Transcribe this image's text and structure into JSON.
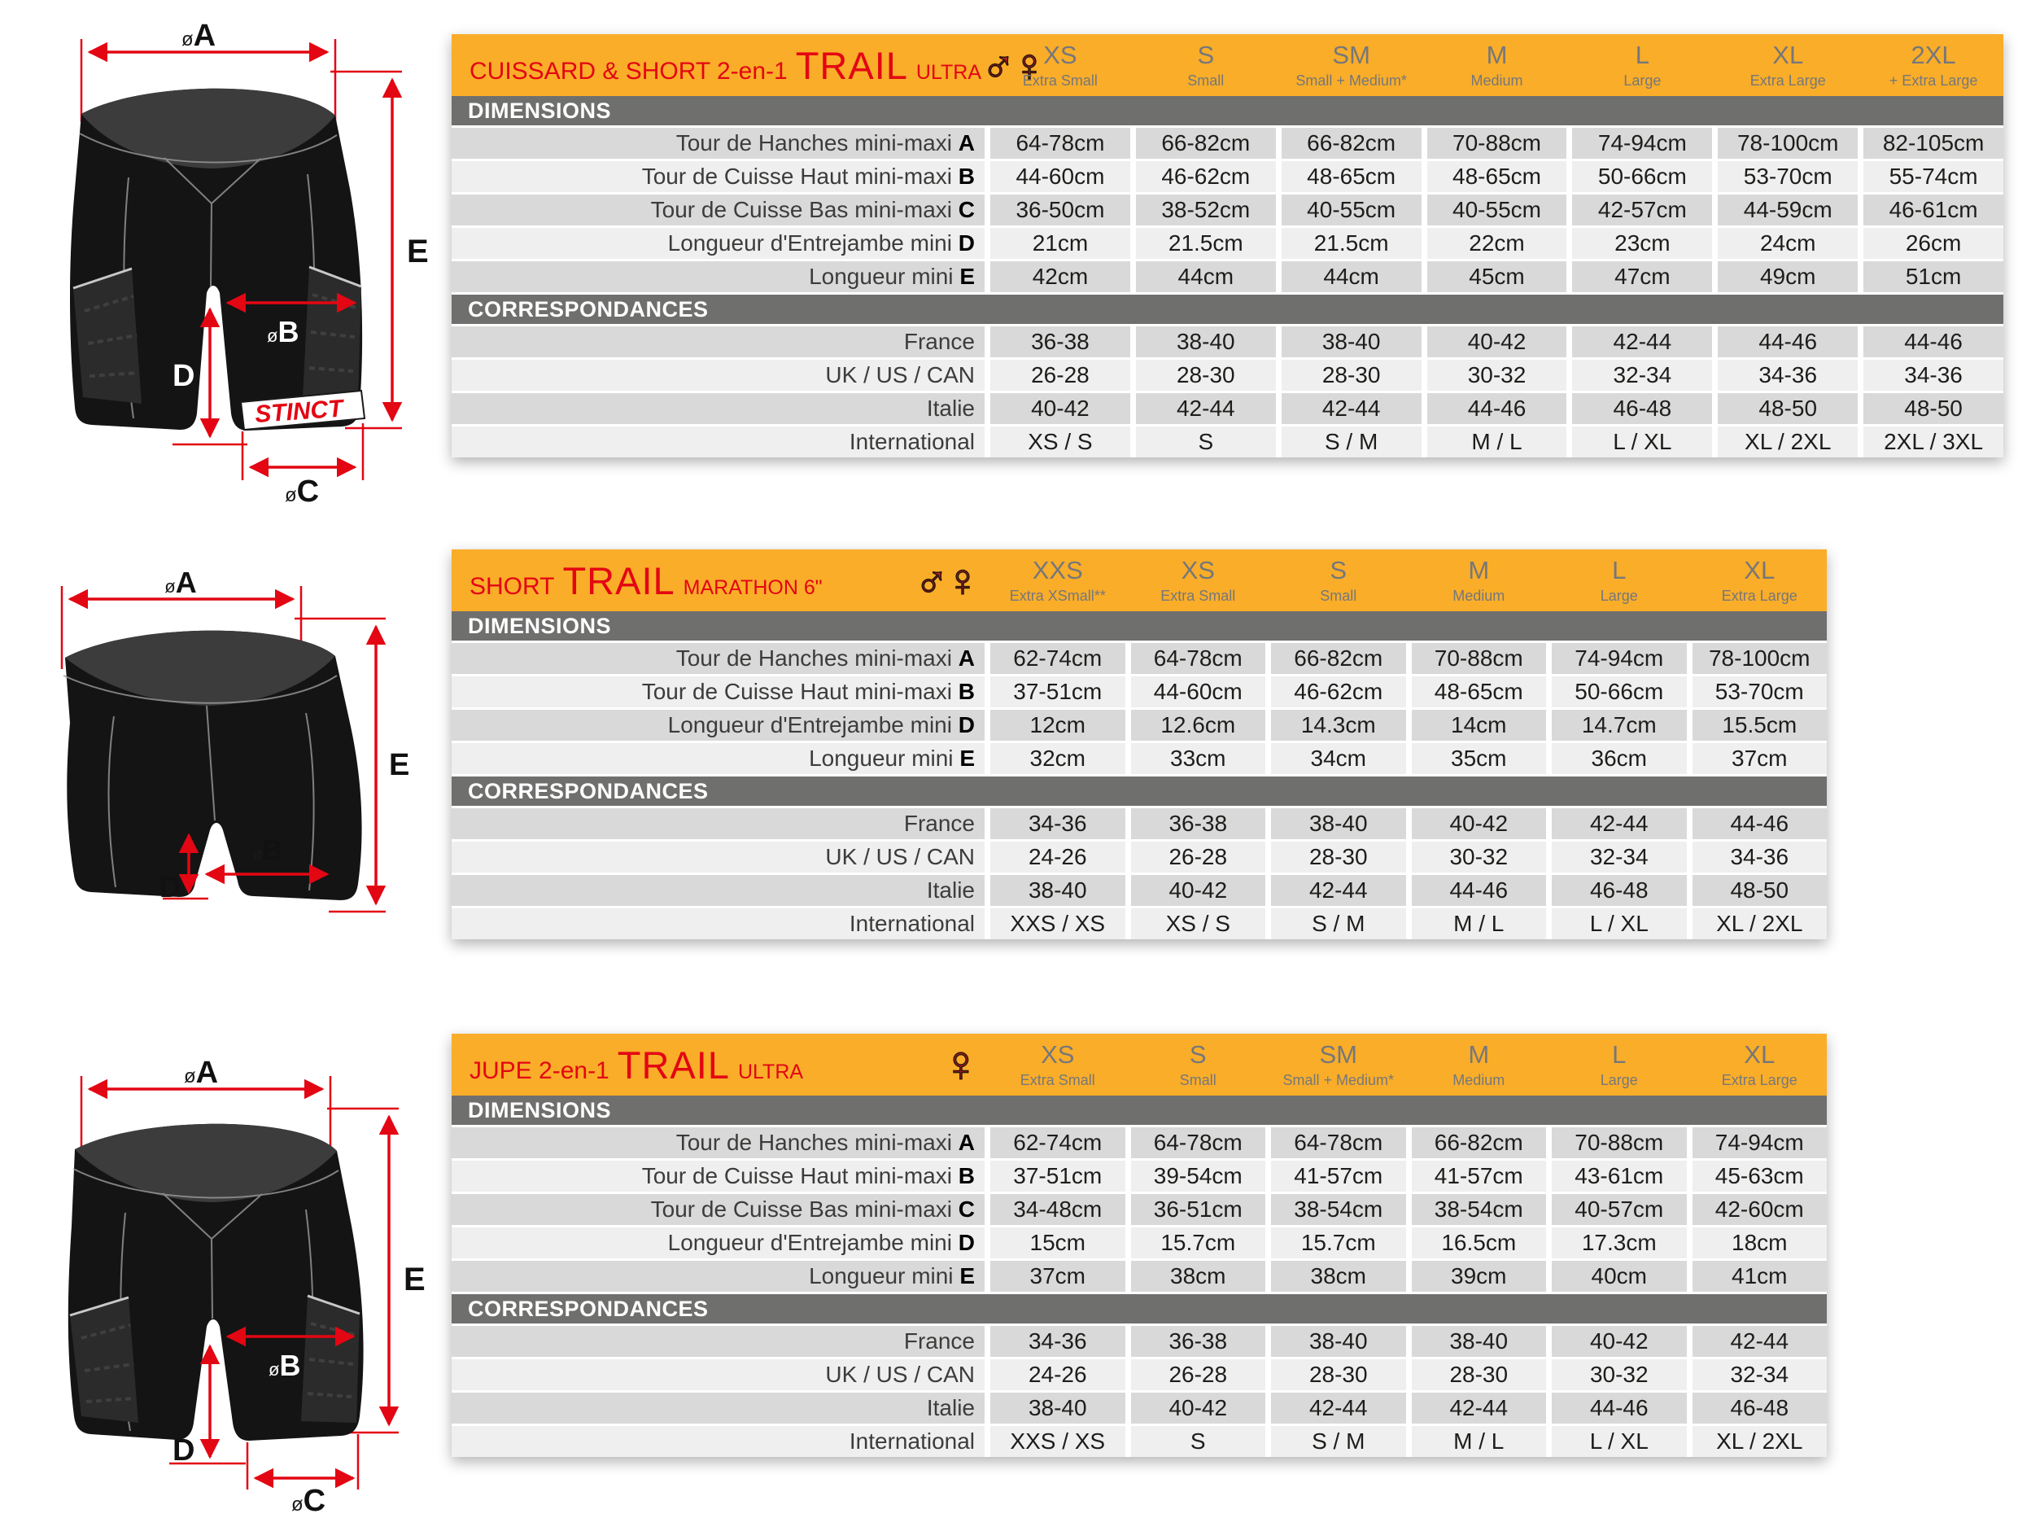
{
  "colors": {
    "header_orange": "#F9AD29",
    "title_red": "#E30613",
    "gender_red": "#C41E25",
    "band_gray": "#6F6F6E",
    "row_dark": "#D9D9D9",
    "row_light": "#EFEFEF",
    "size_label_gray": "#76777A",
    "arrow_red": "#E30613"
  },
  "diagrams": [
    {
      "diameter": "ø",
      "letters": {
        "a": "A",
        "b": "B",
        "c": "C",
        "d": "D",
        "e": "E"
      },
      "brand": "STINCT"
    },
    {
      "diameter": "ø",
      "letters": {
        "a": "A",
        "b": "B",
        "d": "D",
        "e": "E"
      }
    },
    {
      "diameter": "ø",
      "letters": {
        "a": "A",
        "b": "B",
        "c": "C",
        "d": "D",
        "e": "E"
      }
    }
  ],
  "tables": [
    {
      "title": {
        "prefix": "CUISSARD & SHORT 2-en-1",
        "main": "TRAIL",
        "suffix": "ULTRA"
      },
      "gender_icons": [
        {
          "name": "male",
          "glyph": "♂"
        },
        {
          "name": "female",
          "glyph": "♀"
        }
      ],
      "sizes": [
        {
          "code": "XS",
          "name": "Extra Small"
        },
        {
          "code": "S",
          "name": "Small"
        },
        {
          "code": "SM",
          "name": "Small + Medium*"
        },
        {
          "code": "M",
          "name": "Medium"
        },
        {
          "code": "L",
          "name": "Large"
        },
        {
          "code": "XL",
          "name": "Extra Large"
        },
        {
          "code": "2XL",
          "name": "+ Extra Large"
        }
      ],
      "section_dimensions": "DIMENSIONS",
      "section_correspondances": "CORRESPONDANCES",
      "dimension_rows": [
        {
          "label": "Tour de Hanches mini-maxi",
          "letter": "A",
          "values": [
            "64-78cm",
            "66-82cm",
            "66-82cm",
            "70-88cm",
            "74-94cm",
            "78-100cm",
            "82-105cm"
          ]
        },
        {
          "label": "Tour de Cuisse Haut mini-maxi",
          "letter": "B",
          "values": [
            "44-60cm",
            "46-62cm",
            "48-65cm",
            "48-65cm",
            "50-66cm",
            "53-70cm",
            "55-74cm"
          ]
        },
        {
          "label": "Tour de Cuisse Bas mini-maxi",
          "letter": "C",
          "values": [
            "36-50cm",
            "38-52cm",
            "40-55cm",
            "40-55cm",
            "42-57cm",
            "44-59cm",
            "46-61cm"
          ]
        },
        {
          "label": "Longueur d'Entrejambe mini",
          "letter": "D",
          "values": [
            "21cm",
            "21.5cm",
            "21.5cm",
            "22cm",
            "23cm",
            "24cm",
            "26cm"
          ]
        },
        {
          "label": "Longueur mini",
          "letter": "E",
          "values": [
            "42cm",
            "44cm",
            "44cm",
            "45cm",
            "47cm",
            "49cm",
            "51cm"
          ]
        }
      ],
      "correspondance_rows": [
        {
          "label": "France",
          "values": [
            "36-38",
            "38-40",
            "38-40",
            "40-42",
            "42-44",
            "44-46",
            "44-46"
          ]
        },
        {
          "label": "UK / US / CAN",
          "values": [
            "26-28",
            "28-30",
            "28-30",
            "30-32",
            "32-34",
            "34-36",
            "34-36"
          ]
        },
        {
          "label": "Italie",
          "values": [
            "40-42",
            "42-44",
            "42-44",
            "44-46",
            "46-48",
            "48-50",
            "48-50"
          ]
        },
        {
          "label": "International",
          "values": [
            "XS / S",
            "S",
            "S / M",
            "M / L",
            "L / XL",
            "XL / 2XL",
            "2XL / 3XL"
          ]
        }
      ]
    },
    {
      "title": {
        "prefix": "SHORT",
        "main": "TRAIL",
        "suffix": "MARATHON 6\""
      },
      "gender_icons": [
        {
          "name": "male",
          "glyph": "♂"
        },
        {
          "name": "female",
          "glyph": "♀"
        }
      ],
      "sizes": [
        {
          "code": "XXS",
          "name": "Extra XSmall**"
        },
        {
          "code": "XS",
          "name": "Extra Small"
        },
        {
          "code": "S",
          "name": "Small"
        },
        {
          "code": "M",
          "name": "Medium"
        },
        {
          "code": "L",
          "name": "Large"
        },
        {
          "code": "XL",
          "name": "Extra Large"
        }
      ],
      "section_dimensions": "DIMENSIONS",
      "section_correspondances": "CORRESPONDANCES",
      "dimension_rows": [
        {
          "label": "Tour de Hanches mini-maxi",
          "letter": "A",
          "values": [
            "62-74cm",
            "64-78cm",
            "66-82cm",
            "70-88cm",
            "74-94cm",
            "78-100cm"
          ]
        },
        {
          "label": "Tour de Cuisse Haut mini-maxi",
          "letter": "B",
          "values": [
            "37-51cm",
            "44-60cm",
            "46-62cm",
            "48-65cm",
            "50-66cm",
            "53-70cm"
          ]
        },
        {
          "label": "Longueur d'Entrejambe mini",
          "letter": "D",
          "values": [
            "12cm",
            "12.6cm",
            "14.3cm",
            "14cm",
            "14.7cm",
            "15.5cm"
          ]
        },
        {
          "label": "Longueur mini",
          "letter": "E",
          "values": [
            "32cm",
            "33cm",
            "34cm",
            "35cm",
            "36cm",
            "37cm"
          ]
        }
      ],
      "correspondance_rows": [
        {
          "label": "France",
          "values": [
            "34-36",
            "36-38",
            "38-40",
            "40-42",
            "42-44",
            "44-46"
          ]
        },
        {
          "label": "UK / US / CAN",
          "values": [
            "24-26",
            "26-28",
            "28-30",
            "30-32",
            "32-34",
            "34-36"
          ]
        },
        {
          "label": "Italie",
          "values": [
            "38-40",
            "40-42",
            "42-44",
            "44-46",
            "46-48",
            "48-50"
          ]
        },
        {
          "label": "International",
          "values": [
            "XXS / XS",
            "XS / S",
            "S / M",
            "M / L",
            "L / XL",
            "XL / 2XL"
          ]
        }
      ]
    },
    {
      "title": {
        "prefix": "JUPE 2-en-1",
        "main": "TRAIL",
        "suffix": "ULTRA"
      },
      "gender_icons": [
        {
          "name": "female",
          "glyph": "♀"
        }
      ],
      "sizes": [
        {
          "code": "XS",
          "name": "Extra Small"
        },
        {
          "code": "S",
          "name": "Small"
        },
        {
          "code": "SM",
          "name": "Small + Medium*"
        },
        {
          "code": "M",
          "name": "Medium"
        },
        {
          "code": "L",
          "name": "Large"
        },
        {
          "code": "XL",
          "name": "Extra Large"
        }
      ],
      "section_dimensions": "DIMENSIONS",
      "section_correspondances": "CORRESPONDANCES",
      "dimension_rows": [
        {
          "label": "Tour de Hanches mini-maxi",
          "letter": "A",
          "values": [
            "62-74cm",
            "64-78cm",
            "64-78cm",
            "66-82cm",
            "70-88cm",
            "74-94cm"
          ]
        },
        {
          "label": "Tour de Cuisse Haut mini-maxi",
          "letter": "B",
          "values": [
            "37-51cm",
            "39-54cm",
            "41-57cm",
            "41-57cm",
            "43-61cm",
            "45-63cm"
          ]
        },
        {
          "label": "Tour de Cuisse Bas mini-maxi",
          "letter": "C",
          "values": [
            "34-48cm",
            "36-51cm",
            "38-54cm",
            "38-54cm",
            "40-57cm",
            "42-60cm"
          ]
        },
        {
          "label": "Longueur d'Entrejambe mini",
          "letter": "D",
          "values": [
            "15cm",
            "15.7cm",
            "15.7cm",
            "16.5cm",
            "17.3cm",
            "18cm"
          ]
        },
        {
          "label": "Longueur mini",
          "letter": "E",
          "values": [
            "37cm",
            "38cm",
            "38cm",
            "39cm",
            "40cm",
            "41cm"
          ]
        }
      ],
      "correspondance_rows": [
        {
          "label": "France",
          "values": [
            "34-36",
            "36-38",
            "38-40",
            "38-40",
            "40-42",
            "42-44"
          ]
        },
        {
          "label": "UK / US / CAN",
          "values": [
            "24-26",
            "26-28",
            "28-30",
            "28-30",
            "30-32",
            "32-34"
          ]
        },
        {
          "label": "Italie",
          "values": [
            "38-40",
            "40-42",
            "42-44",
            "42-44",
            "44-46",
            "46-48"
          ]
        },
        {
          "label": "International",
          "values": [
            "XXS / XS",
            "S",
            "S / M",
            "M / L",
            "L / XL",
            "XL / 2XL"
          ]
        }
      ]
    }
  ]
}
